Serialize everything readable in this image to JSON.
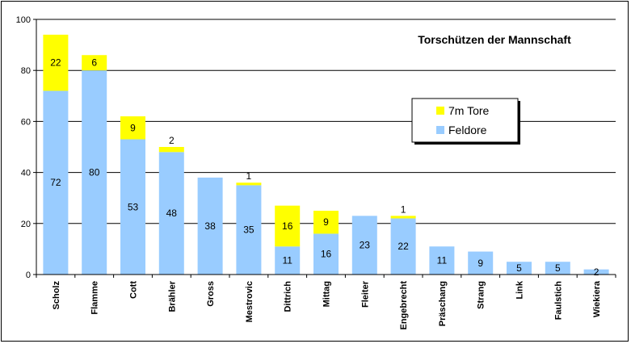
{
  "chart_data": {
    "type": "bar",
    "stacked": true,
    "title": "Torschützen der Mannschaft",
    "xlabel": "",
    "ylabel": "",
    "ylim": [
      0,
      100
    ],
    "yticks": [
      0,
      20,
      40,
      60,
      80,
      100
    ],
    "grid": true,
    "legend_position": "right",
    "categories": [
      "Scholz",
      "Flamme",
      "Cott",
      "Brähler",
      "Gross",
      "Mestrovic",
      "Dittrich",
      "Mittag",
      "Fleiter",
      "Engebrecht",
      "Präschang",
      "Strang",
      "Link",
      "Faulstich",
      "Wiekiera"
    ],
    "series": [
      {
        "name": "Feldore",
        "color": "#99ccff",
        "values": [
          72,
          80,
          53,
          48,
          38,
          35,
          11,
          16,
          23,
          22,
          11,
          9,
          5,
          5,
          2
        ]
      },
      {
        "name": "7m Tore",
        "color": "#ffff00",
        "values": [
          22,
          6,
          9,
          2,
          0,
          1,
          16,
          9,
          0,
          1,
          0,
          0,
          0,
          0,
          0
        ]
      }
    ],
    "legend_order": [
      "7m Tore",
      "Feldore"
    ]
  }
}
